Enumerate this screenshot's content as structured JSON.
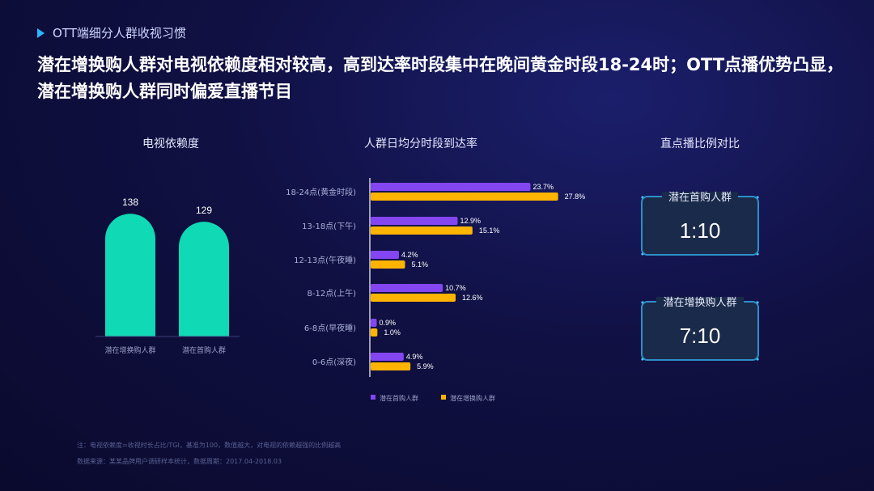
{
  "section_label": "OTT端细分人群收视习惯",
  "headline": "潜在增换购人群对电视依赖度相对较高，高到达率时段集中在晚间黄金时段18-24时；OTT点播优势凸显，潜在增换购人群同时偏爱直播节目",
  "colors": {
    "teal": "#10d9b5",
    "purple": "#8446f0",
    "orange": "#ffb400",
    "accent": "#2ab8ff"
  },
  "chart_data": [
    {
      "type": "bar",
      "title": "电视依赖度",
      "categories": [
        "潜在增换购人群",
        "潜在首购人群"
      ],
      "values": [
        138,
        129
      ],
      "ylim": [
        0,
        160
      ]
    },
    {
      "type": "bar",
      "orientation": "horizontal",
      "title": "人群日均分时段到达率",
      "categories": [
        "18-24点(黄金时段)",
        "13-18点(下午)",
        "12-13点(午夜睡)",
        "8-12点(上午)",
        "6-8点(早夜睡)",
        "0-6点(深夜)"
      ],
      "series": [
        {
          "name": "潜在首购人群",
          "values": [
            23.7,
            12.9,
            4.2,
            10.7,
            0.9,
            4.9
          ]
        },
        {
          "name": "潜在增换购人群",
          "values": [
            27.8,
            15.1,
            5.1,
            12.6,
            1.0,
            5.9
          ]
        }
      ],
      "xlim": [
        0,
        30
      ],
      "unit": "%",
      "legend": "bottom"
    }
  ],
  "ratio_panel": {
    "title": "直点播比例对比",
    "cards": [
      {
        "label": "潜在首购人群",
        "value": "1:10"
      },
      {
        "label": "潜在增换购人群",
        "value": "7:10"
      }
    ]
  },
  "footnotes": [
    "注：电视依赖度=收视时长占比/TGI，基准为100，数值越大，对电视的依赖越强的比例越高",
    "数据来源：某某品牌用户调研样本统计，数据周期：2017.04-2018.03"
  ]
}
